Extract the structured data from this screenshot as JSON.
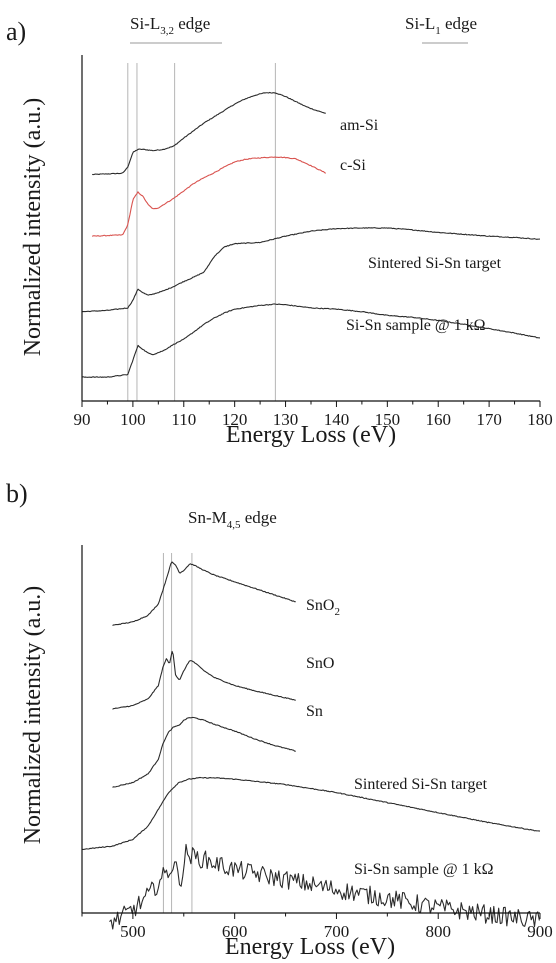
{
  "chart_data": [
    {
      "type": "line",
      "panel_label": "a)",
      "xlabel": "Energy Loss (eV)",
      "ylabel": "Normalized intensity (a.u.)",
      "xlim": [
        90,
        180
      ],
      "ylim": [
        0,
        5.5
      ],
      "x_ticks": [
        90,
        100,
        110,
        120,
        130,
        140,
        150,
        160,
        170,
        180
      ],
      "edges": [
        {
          "base": "Si-L",
          "sub": "3,2",
          "suffix": " edge",
          "range": [
            100,
            117
          ]
        },
        {
          "base": "Si-L",
          "sub": "1",
          "suffix": " edge",
          "range": [
            155,
            166
          ]
        }
      ],
      "reference_lines": [
        99,
        100.8,
        108.2,
        128
      ],
      "series": [
        {
          "name": "am-Si",
          "color": "#2b2b2b",
          "x": [
            92,
            98,
            99,
            100,
            101,
            102,
            104,
            106,
            108,
            110,
            112,
            114,
            116,
            118,
            120,
            122,
            124,
            126,
            128,
            130,
            132,
            134,
            136,
            138
          ],
          "y": [
            3.6,
            3.62,
            3.72,
            3.95,
            4.0,
            4.0,
            3.98,
            4.0,
            4.05,
            4.18,
            4.3,
            4.42,
            4.52,
            4.62,
            4.72,
            4.8,
            4.86,
            4.9,
            4.9,
            4.84,
            4.76,
            4.68,
            4.62,
            4.57
          ]
        },
        {
          "name": "c-Si",
          "color": "#d9534f",
          "x": [
            92,
            98,
            99,
            100,
            101,
            102,
            103,
            104,
            105,
            106,
            108,
            110,
            112,
            114,
            116,
            118,
            120,
            122,
            124,
            126,
            128,
            130,
            132,
            134,
            136,
            138
          ],
          "y": [
            2.62,
            2.64,
            2.8,
            3.2,
            3.32,
            3.25,
            3.12,
            3.05,
            3.07,
            3.12,
            3.22,
            3.34,
            3.46,
            3.55,
            3.63,
            3.72,
            3.8,
            3.84,
            3.86,
            3.87,
            3.88,
            3.87,
            3.85,
            3.78,
            3.7,
            3.62
          ]
        },
        {
          "name": "Sintered Si-Sn target",
          "color": "#2b2b2b",
          "x": [
            90,
            95,
            99,
            100,
            101,
            102,
            103,
            104,
            106,
            108,
            110,
            112,
            114,
            116,
            118,
            120,
            125,
            130,
            135,
            140,
            145,
            150,
            155,
            160,
            165,
            170,
            175,
            180
          ],
          "y": [
            1.42,
            1.44,
            1.48,
            1.6,
            1.78,
            1.72,
            1.68,
            1.7,
            1.75,
            1.82,
            1.9,
            1.97,
            2.05,
            2.3,
            2.45,
            2.5,
            2.52,
            2.62,
            2.7,
            2.74,
            2.75,
            2.75,
            2.72,
            2.68,
            2.65,
            2.62,
            2.6,
            2.57
          ]
        },
        {
          "name": "Si-Sn sample @ 1 kΩ",
          "color": "#2b2b2b",
          "x": [
            90,
            95,
            99,
            100,
            101,
            102,
            103,
            104,
            106,
            108,
            110,
            112,
            114,
            116,
            118,
            120,
            125,
            128,
            130,
            135,
            140,
            145,
            150,
            155,
            160,
            165,
            170,
            175,
            180
          ],
          "y": [
            0.38,
            0.38,
            0.42,
            0.65,
            0.88,
            0.82,
            0.76,
            0.74,
            0.8,
            0.9,
            0.98,
            1.1,
            1.22,
            1.32,
            1.4,
            1.46,
            1.52,
            1.54,
            1.53,
            1.48,
            1.46,
            1.42,
            1.36,
            1.33,
            1.28,
            1.22,
            1.15,
            1.08,
            1.0
          ]
        }
      ]
    },
    {
      "type": "line",
      "panel_label": "b)",
      "xlabel": "Energy Loss (eV)",
      "ylabel": "Normalized intensity (a.u.)",
      "xlim": [
        450,
        900
      ],
      "ylim": [
        0,
        5.5
      ],
      "x_ticks": [
        500,
        600,
        700,
        800,
        900
      ],
      "edges": [
        {
          "base": "Sn-M",
          "sub": "4,5",
          "suffix": " edge"
        }
      ],
      "reference_lines": [
        530,
        538,
        558
      ],
      "series": [
        {
          "name": "SnO",
          "name_sub": "2",
          "color": "#2b2b2b",
          "x": [
            480,
            500,
            515,
            525,
            530,
            535,
            538,
            542,
            546,
            550,
            556,
            560,
            570,
            580,
            600,
            620,
            640,
            660
          ],
          "y": [
            4.3,
            4.35,
            4.45,
            4.62,
            4.85,
            5.1,
            5.25,
            5.2,
            5.08,
            5.12,
            5.22,
            5.2,
            5.12,
            5.05,
            4.95,
            4.85,
            4.75,
            4.65
          ]
        },
        {
          "name": "SnO",
          "color": "#2b2b2b",
          "x": [
            480,
            500,
            515,
            525,
            530,
            533,
            536,
            539,
            542,
            546,
            550,
            556,
            560,
            570,
            580,
            600,
            620,
            640,
            660
          ],
          "y": [
            3.05,
            3.1,
            3.2,
            3.4,
            3.7,
            3.8,
            3.72,
            3.95,
            3.55,
            3.48,
            3.62,
            3.78,
            3.75,
            3.62,
            3.52,
            3.4,
            3.32,
            3.25,
            3.18
          ]
        },
        {
          "name": "Sn",
          "color": "#2b2b2b",
          "x": [
            480,
            500,
            515,
            525,
            530,
            535,
            540,
            545,
            550,
            555,
            560,
            570,
            580,
            600,
            620,
            640,
            660
          ],
          "y": [
            1.88,
            1.95,
            2.08,
            2.3,
            2.55,
            2.7,
            2.78,
            2.8,
            2.88,
            2.92,
            2.92,
            2.88,
            2.82,
            2.72,
            2.6,
            2.5,
            2.42
          ]
        },
        {
          "name": "Sintered Si-Sn target",
          "color": "#2b2b2b",
          "x": [
            450,
            480,
            500,
            515,
            525,
            535,
            545,
            555,
            565,
            580,
            600,
            650,
            700,
            750,
            800,
            850,
            900
          ],
          "y": [
            0.95,
            1.0,
            1.1,
            1.3,
            1.55,
            1.8,
            1.95,
            2.0,
            2.02,
            2.02,
            2.0,
            1.92,
            1.8,
            1.65,
            1.5,
            1.35,
            1.22
          ]
        },
        {
          "name": "Si-Sn sample",
          "name_rest": " @ 1 kΩ",
          "color": "#2b2b2b",
          "noisy": true,
          "x": [
            477,
            490,
            500,
            510,
            520,
            530,
            540,
            548,
            552,
            558,
            565,
            580,
            600,
            650,
            700,
            750,
            800,
            850,
            900
          ],
          "y": [
            -0.15,
            -0.05,
            0.05,
            0.18,
            0.35,
            0.55,
            0.72,
            0.5,
            0.9,
            0.85,
            0.82,
            0.75,
            0.65,
            0.5,
            0.35,
            0.22,
            0.08,
            -0.02,
            -0.12
          ]
        }
      ]
    }
  ]
}
